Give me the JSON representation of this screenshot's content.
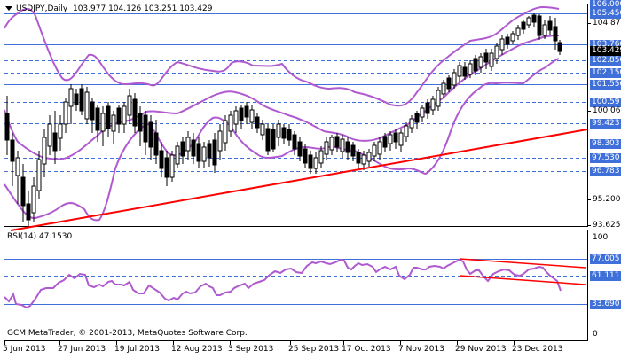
{
  "header": {
    "symbol_label": "USDJPY,Daily",
    "ohlc": "103.977 104.126 103.251 103.429",
    "dropdown_icon": "triangle-down-icon"
  },
  "rsi_header": {
    "label": "RSI(14) 47.1530"
  },
  "footer": {
    "copyright": "GCM MetaTrader, © 2001-2013, MetaQuotes Software Corp."
  },
  "colors": {
    "background": "#ffffff",
    "axis": "#000000",
    "level_line": "#3f6fd8",
    "label_bg": "#3f6fd8",
    "label_text": "#ffffff",
    "bollinger": "#b05ad0",
    "trendline": "#ff0000",
    "current_price_line": "#c0c0c0",
    "candle": "#000000"
  },
  "chart_data": [
    {
      "type": "line",
      "title": "USDJPY,Daily",
      "subtitle": "103.977 104.126 103.251 103.429",
      "xlabel": "",
      "ylabel": "",
      "ylim": [
        93.625,
        106.0
      ],
      "x_ticks": [
        "5 Jun 2013",
        "27 Jun 2013",
        "19 Jul 2013",
        "12 Aug 2013",
        "3 Sep 2013",
        "25 Sep 2013",
        "17 Oct 2013",
        "7 Nov 2013",
        "29 Nov 2013",
        "23 Dec 2013"
      ],
      "y_ticks": [
        "104.875",
        "100.060",
        "95.200",
        "93.625"
      ],
      "current_price": "103.429",
      "horizontal_levels": [
        {
          "value": "106.000",
          "style": "dashed"
        },
        {
          "value": "105.450",
          "style": "solid"
        },
        {
          "value": "103.760",
          "style": "solid"
        },
        {
          "value": "102.850",
          "style": "dashed"
        },
        {
          "value": "102.150",
          "style": "dashed"
        },
        {
          "value": "101.550",
          "style": "solid"
        },
        {
          "value": "100.597",
          "style": "dashed"
        },
        {
          "value": "99.423",
          "style": "dashed"
        },
        {
          "value": "98.303",
          "style": "dashed"
        },
        {
          "value": "97.530",
          "style": "dashed"
        },
        {
          "value": "96.783",
          "style": "dashed"
        }
      ],
      "trendline": {
        "name": "Support trendline",
        "from": [
          "5 Jun 2013",
          93.6
        ],
        "to": [
          "end",
          99.0
        ]
      },
      "series": [
        {
          "name": "Price (candlesticks, approx close)",
          "x": [
            "5 Jun 2013",
            "27 Jun 2013",
            "19 Jul 2013",
            "12 Aug 2013",
            "3 Sep 2013",
            "25 Sep 2013",
            "17 Oct 2013",
            "7 Nov 2013",
            "29 Nov 2013",
            "23 Dec 2013",
            "end"
          ],
          "values": [
            99.0,
            97.8,
            100.3,
            96.8,
            99.3,
            98.1,
            97.8,
            98.8,
            102.2,
            104.6,
            103.43
          ]
        },
        {
          "name": "Bollinger Upper",
          "values": [
            104.5,
            100.8,
            100.5,
            100.6,
            100.6,
            99.8,
            98.9,
            99.6,
            103.5,
            105.6,
            105.9
          ]
        },
        {
          "name": "Bollinger Middle",
          "values": [
            100.6,
            99.0,
            98.6,
            98.8,
            99.5,
            98.4,
            98.0,
            98.3,
            101.2,
            103.4,
            104.0
          ]
        },
        {
          "name": "Bollinger Lower",
          "values": [
            96.6,
            93.9,
            94.2,
            96.0,
            97.6,
            96.2,
            97.0,
            96.8,
            98.9,
            101.4,
            102.9
          ]
        }
      ]
    },
    {
      "type": "line",
      "title": "RSI(14) 47.1530",
      "ylim": [
        0,
        100
      ],
      "y_ticks": [
        "100",
        "0"
      ],
      "levels": [
        "77.005",
        "61.111",
        "33.690"
      ],
      "x_ticks": [
        "5 Jun 2013",
        "27 Jun 2013",
        "19 Jul 2013",
        "12 Aug 2013",
        "3 Sep 2013",
        "25 Sep 2013",
        "17 Oct 2013",
        "7 Nov 2013",
        "29 Nov 2013",
        "23 Dec 2013"
      ],
      "series": [
        {
          "name": "RSI(14)",
          "values": [
            42,
            38,
            55,
            61,
            48,
            43,
            38,
            50,
            62,
            76,
            64,
            68,
            47
          ]
        }
      ],
      "trendlines": [
        {
          "name": "RSI upper channel",
          "from": 77.005,
          "to": 71
        },
        {
          "name": "RSI lower channel",
          "from": 60.5,
          "to": 52
        }
      ]
    }
  ]
}
